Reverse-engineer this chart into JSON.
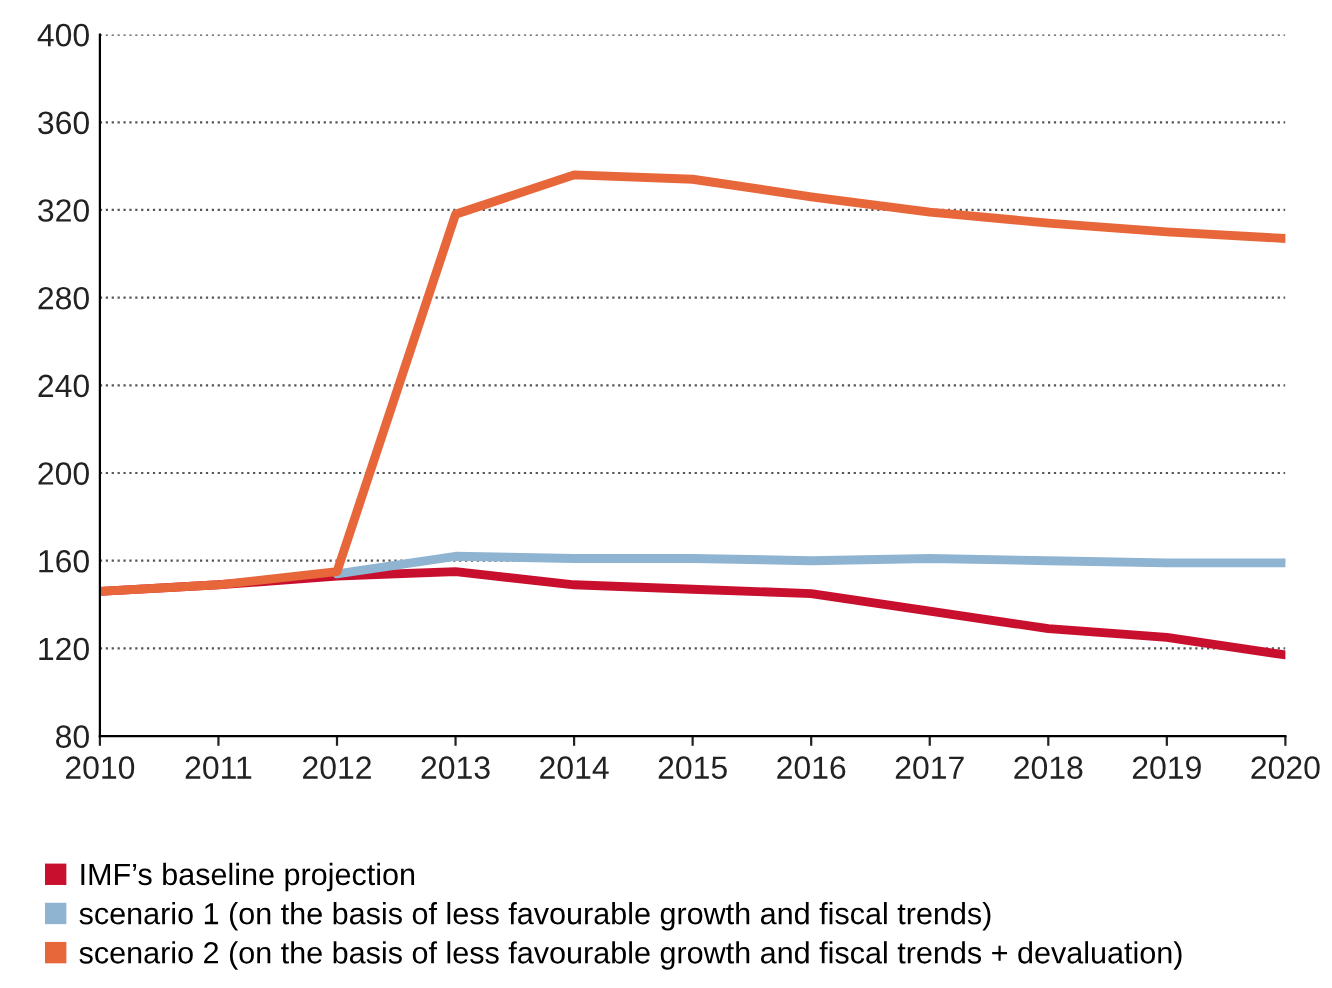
{
  "chart_data": {
    "type": "line",
    "x": [
      2010,
      2011,
      2012,
      2013,
      2014,
      2015,
      2016,
      2017,
      2018,
      2019,
      2020
    ],
    "series": [
      {
        "name": "IMF’s baseline projection",
        "color": "#c8102e",
        "values": [
          146,
          149,
          153,
          155,
          149,
          147,
          145,
          137,
          129,
          125,
          117
        ]
      },
      {
        "name": "scenario 1 (on the basis of less favourable growth and fiscal trends)",
        "color": "#8fb4d1",
        "values": [
          null,
          null,
          154,
          162,
          161,
          161,
          160,
          161,
          160,
          159,
          159
        ]
      },
      {
        "name": "scenario 2 (on the basis of less favourable growth and fiscal trends + devaluation)",
        "color": "#e8673a",
        "values": [
          146,
          149,
          155,
          318,
          336,
          334,
          326,
          319,
          314,
          310,
          307
        ]
      }
    ],
    "xlim": [
      2010,
      2020
    ],
    "xticks": [
      2010,
      2011,
      2012,
      2013,
      2014,
      2015,
      2016,
      2017,
      2018,
      2019,
      2020
    ],
    "ylim": [
      80,
      400
    ],
    "yticks": [
      80,
      120,
      160,
      200,
      240,
      280,
      320,
      360,
      400
    ],
    "grid": "y",
    "legend": "bottom",
    "marker": "none",
    "line_style": "solid"
  }
}
